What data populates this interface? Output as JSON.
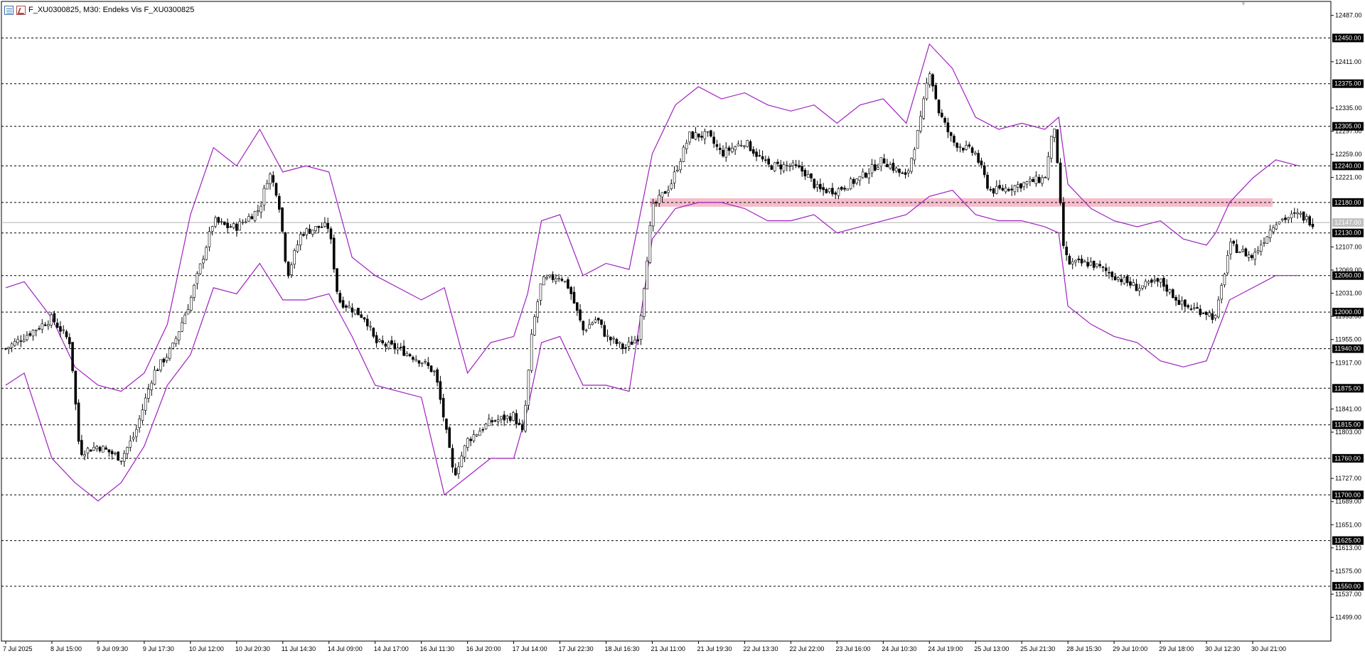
{
  "window": {
    "symbol": "F_XU0300825",
    "timeframe": "M30",
    "description": "Endeks Vis F_XU0300825",
    "title_text": "F_XU0300825, M30:  Endeks Vis F_XU0300825"
  },
  "colors": {
    "background": "#ffffff",
    "grid_level": "#000000",
    "bands": "#a020c0",
    "candles": "#000000",
    "zone": "#f4b6c6",
    "current_price_line": "#b0b0b0"
  },
  "icons": [
    "list-icon",
    "chart-bars-icon"
  ],
  "chart_data": {
    "type": "candlestick",
    "indicator": "Bollinger Bands",
    "ylim": [
      11460,
      12510
    ],
    "y_tick_labels": [
      "12487.00",
      "12411.00",
      "12335.00",
      "12297.00",
      "12259.00",
      "12221.00",
      "12107.00",
      "12069.00",
      "12031.00",
      "11993.00",
      "11955.00",
      "11917.00",
      "11841.00",
      "11803.00",
      "11727.00",
      "11689.00",
      "11651.00",
      "11613.00",
      "11575.00",
      "11537.00",
      "11499.00"
    ],
    "horizontal_levels": [
      12450,
      12375,
      12305,
      12240,
      12180,
      12130,
      12060,
      12000,
      11940,
      11875,
      11815,
      11760,
      11700,
      11625,
      11550
    ],
    "horizontal_level_labels": [
      "12450.00",
      "12375.00",
      "12305.00",
      "12240.00",
      "12180.00",
      "12130.00",
      "12060.00",
      "12000.00",
      "11940.00",
      "11875.00",
      "11815.00",
      "11760.00",
      "11700.00",
      "11625.00",
      "11550.00"
    ],
    "current_price": 12147,
    "current_price_label": "12147.00",
    "zone": {
      "from": 12173,
      "to": 12187,
      "start_label": "21 Jul 11:00",
      "end_label": "30 Jul 21:00"
    },
    "x_labels": [
      "7 Jul 2025",
      "8 Jul 15:00",
      "9 Jul 09:30",
      "9 Jul 17:30",
      "10 Jul 12:00",
      "10 Jul 20:30",
      "11 Jul 14:30",
      "14 Jul 09:00",
      "14 Jul 17:00",
      "16 Jul 11:30",
      "16 Jul 20:00",
      "17 Jul 14:00",
      "17 Jul 22:30",
      "18 Jul 16:30",
      "21 Jul 11:00",
      "21 Jul 19:30",
      "22 Jul 13:30",
      "22 Jul 22:00",
      "23 Jul 16:00",
      "24 Jul 10:30",
      "24 Jul 19:00",
      "25 Jul 13:00",
      "25 Jul 21:30",
      "28 Jul 15:30",
      "29 Jul 10:00",
      "29 Jul 18:00",
      "30 Jul 12:30",
      "30 Jul 21:00"
    ],
    "close_path": [
      [
        0,
        11940
      ],
      [
        1,
        11990
      ],
      [
        1.4,
        11950
      ],
      [
        1.6,
        11770
      ],
      [
        2,
        11780
      ],
      [
        2.5,
        11760
      ],
      [
        2.8,
        11800
      ],
      [
        3.2,
        11900
      ],
      [
        3.6,
        11940
      ],
      [
        4,
        12020
      ],
      [
        4.5,
        12150
      ],
      [
        4.8,
        12140
      ],
      [
        5,
        12140
      ],
      [
        5.5,
        12170
      ],
      [
        5.7,
        12230
      ],
      [
        5.9,
        12190
      ],
      [
        6.1,
        12060
      ],
      [
        6.4,
        12130
      ],
      [
        6.8,
        12140
      ],
      [
        7,
        12140
      ],
      [
        7.2,
        12020
      ],
      [
        7.8,
        11990
      ],
      [
        8,
        11950
      ],
      [
        8.5,
        11940
      ],
      [
        9,
        11920
      ],
      [
        9.3,
        11900
      ],
      [
        9.5,
        11820
      ],
      [
        9.7,
        11730
      ],
      [
        10,
        11790
      ],
      [
        10.5,
        11820
      ],
      [
        11,
        11830
      ],
      [
        11.2,
        11800
      ],
      [
        11.4,
        11970
      ],
      [
        11.6,
        12050
      ],
      [
        12,
        12060
      ],
      [
        12.2,
        12040
      ],
      [
        12.5,
        11970
      ],
      [
        12.8,
        11990
      ],
      [
        13,
        11960
      ],
      [
        13.4,
        11940
      ],
      [
        13.7,
        11960
      ],
      [
        14,
        12170
      ],
      [
        14.4,
        12210
      ],
      [
        14.8,
        12290
      ],
      [
        15.2,
        12290
      ],
      [
        15.5,
        12260
      ],
      [
        16,
        12280
      ],
      [
        16.5,
        12240
      ],
      [
        17,
        12240
      ],
      [
        17.3,
        12230
      ],
      [
        17.6,
        12200
      ],
      [
        18,
        12200
      ],
      [
        18.5,
        12220
      ],
      [
        19,
        12250
      ],
      [
        19.5,
        12220
      ],
      [
        19.8,
        12310
      ],
      [
        20,
        12400
      ],
      [
        20.2,
        12330
      ],
      [
        20.5,
        12280
      ],
      [
        21,
        12260
      ],
      [
        21.3,
        12200
      ],
      [
        21.5,
        12200
      ],
      [
        22,
        12210
      ],
      [
        22.5,
        12220
      ],
      [
        22.7,
        12310
      ],
      [
        22.9,
        12110
      ],
      [
        23,
        12080
      ],
      [
        23.5,
        12080
      ],
      [
        24,
        12060
      ],
      [
        24.5,
        12040
      ],
      [
        25,
        12050
      ],
      [
        25.5,
        12010
      ],
      [
        26,
        12000
      ],
      [
        26.2,
        11990
      ],
      [
        26.5,
        12110
      ],
      [
        27,
        12090
      ],
      [
        27.5,
        12150
      ],
      [
        28,
        12160
      ],
      [
        28.3,
        12147
      ]
    ],
    "upper_band": [
      [
        0,
        12040
      ],
      [
        0.4,
        12050
      ],
      [
        1,
        11990
      ],
      [
        1.5,
        11910
      ],
      [
        2,
        11880
      ],
      [
        2.5,
        11870
      ],
      [
        3,
        11900
      ],
      [
        3.5,
        11980
      ],
      [
        4,
        12160
      ],
      [
        4.5,
        12270
      ],
      [
        5,
        12240
      ],
      [
        5.5,
        12300
      ],
      [
        6,
        12230
      ],
      [
        6.5,
        12240
      ],
      [
        7,
        12230
      ],
      [
        7.5,
        12090
      ],
      [
        8,
        12060
      ],
      [
        8.5,
        12040
      ],
      [
        9,
        12020
      ],
      [
        9.5,
        12040
      ],
      [
        10,
        11900
      ],
      [
        10.5,
        11950
      ],
      [
        11,
        11960
      ],
      [
        11.3,
        12030
      ],
      [
        11.6,
        12150
      ],
      [
        12,
        12160
      ],
      [
        12.5,
        12060
      ],
      [
        13,
        12080
      ],
      [
        13.5,
        12070
      ],
      [
        14,
        12260
      ],
      [
        14.5,
        12340
      ],
      [
        15,
        12370
      ],
      [
        15.5,
        12350
      ],
      [
        16,
        12360
      ],
      [
        16.5,
        12340
      ],
      [
        17,
        12330
      ],
      [
        17.5,
        12340
      ],
      [
        18,
        12310
      ],
      [
        18.5,
        12340
      ],
      [
        19,
        12350
      ],
      [
        19.5,
        12310
      ],
      [
        20,
        12440
      ],
      [
        20.5,
        12400
      ],
      [
        21,
        12320
      ],
      [
        21.5,
        12300
      ],
      [
        22,
        12310
      ],
      [
        22.5,
        12300
      ],
      [
        22.8,
        12320
      ],
      [
        23,
        12210
      ],
      [
        23.5,
        12170
      ],
      [
        24,
        12150
      ],
      [
        24.5,
        12140
      ],
      [
        25,
        12150
      ],
      [
        25.5,
        12120
      ],
      [
        26,
        12110
      ],
      [
        26.2,
        12130
      ],
      [
        26.5,
        12180
      ],
      [
        27,
        12220
      ],
      [
        27.5,
        12250
      ],
      [
        28,
        12240
      ]
    ],
    "lower_band": [
      [
        0,
        11880
      ],
      [
        0.4,
        11900
      ],
      [
        1,
        11760
      ],
      [
        1.5,
        11720
      ],
      [
        2,
        11690
      ],
      [
        2.5,
        11720
      ],
      [
        3,
        11780
      ],
      [
        3.5,
        11880
      ],
      [
        4,
        11930
      ],
      [
        4.5,
        12040
      ],
      [
        5,
        12030
      ],
      [
        5.5,
        12080
      ],
      [
        6,
        12020
      ],
      [
        6.5,
        12020
      ],
      [
        7,
        12030
      ],
      [
        7.5,
        11960
      ],
      [
        8,
        11880
      ],
      [
        8.5,
        11870
      ],
      [
        9,
        11860
      ],
      [
        9.5,
        11700
      ],
      [
        10,
        11730
      ],
      [
        10.5,
        11760
      ],
      [
        11,
        11760
      ],
      [
        11.3,
        11840
      ],
      [
        11.6,
        11950
      ],
      [
        12,
        11960
      ],
      [
        12.5,
        11880
      ],
      [
        13,
        11880
      ],
      [
        13.5,
        11870
      ],
      [
        14,
        12120
      ],
      [
        14.5,
        12170
      ],
      [
        15,
        12180
      ],
      [
        15.5,
        12180
      ],
      [
        16,
        12170
      ],
      [
        16.5,
        12150
      ],
      [
        17,
        12150
      ],
      [
        17.5,
        12160
      ],
      [
        18,
        12130
      ],
      [
        18.5,
        12140
      ],
      [
        19,
        12150
      ],
      [
        19.5,
        12160
      ],
      [
        20,
        12190
      ],
      [
        20.5,
        12200
      ],
      [
        21,
        12160
      ],
      [
        21.5,
        12150
      ],
      [
        22,
        12150
      ],
      [
        22.5,
        12140
      ],
      [
        22.8,
        12130
      ],
      [
        23,
        12010
      ],
      [
        23.5,
        11980
      ],
      [
        24,
        11960
      ],
      [
        24.5,
        11950
      ],
      [
        25,
        11920
      ],
      [
        25.5,
        11910
      ],
      [
        26,
        11920
      ],
      [
        26.2,
        11960
      ],
      [
        26.5,
        12020
      ],
      [
        27,
        12040
      ],
      [
        27.5,
        12060
      ],
      [
        28,
        12060
      ]
    ]
  }
}
